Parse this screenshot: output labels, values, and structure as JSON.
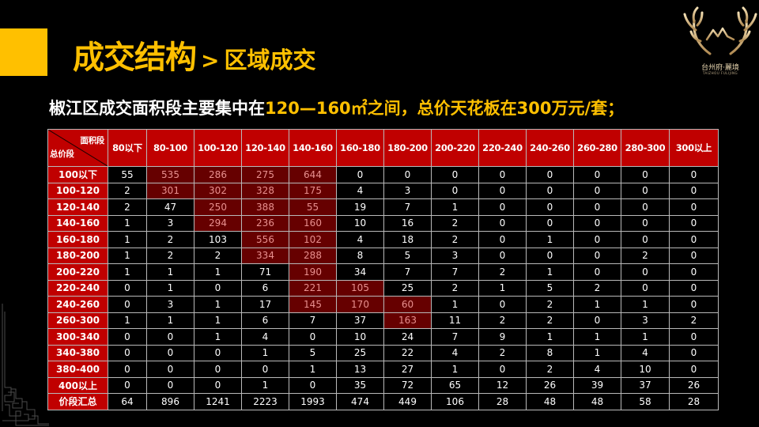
{
  "header": {
    "title_main": "成交结构",
    "title_separator": ">",
    "title_sub": "区域成交",
    "accent_color": "#FFC000"
  },
  "logo": {
    "name_cn": "台州府·麗境",
    "name_en": "TAIZHOU FULIJING",
    "icon": "antler-icon"
  },
  "headline": {
    "prefix": "椒江区成交面积段主要集中在",
    "highlight": "120—160㎡之间，总价天花板在300万元/套；"
  },
  "table": {
    "corner_top": "面积段",
    "corner_bottom": "总价段",
    "header_color": "#C00000",
    "highlight_color": "#660000",
    "columns": [
      "80以下",
      "80-100",
      "100-120",
      "120-140",
      "140-160",
      "160-180",
      "180-200",
      "200-220",
      "220-240",
      "240-260",
      "260-280",
      "280-300",
      "300以上"
    ],
    "rows": [
      {
        "label": "100以下",
        "values": [
          "55",
          "535",
          "286",
          "275",
          "644",
          "0",
          "0",
          "0",
          "0",
          "0",
          "0",
          "0",
          "0"
        ],
        "hot": [
          1,
          2,
          3,
          4
        ]
      },
      {
        "label": "100-120",
        "values": [
          "2",
          "301",
          "302",
          "328",
          "175",
          "4",
          "3",
          "0",
          "0",
          "0",
          "0",
          "0",
          "0"
        ],
        "hot": [
          1,
          2,
          3,
          4
        ]
      },
      {
        "label": "120-140",
        "values": [
          "2",
          "47",
          "250",
          "388",
          "55",
          "19",
          "7",
          "1",
          "0",
          "0",
          "0",
          "0",
          "0"
        ],
        "hot": [
          2,
          3,
          4
        ]
      },
      {
        "label": "140-160",
        "values": [
          "1",
          "3",
          "294",
          "236",
          "160",
          "10",
          "16",
          "2",
          "0",
          "0",
          "0",
          "0",
          "0"
        ],
        "hot": [
          2,
          3,
          4
        ]
      },
      {
        "label": "160-180",
        "values": [
          "1",
          "2",
          "103",
          "556",
          "102",
          "4",
          "18",
          "2",
          "0",
          "1",
          "0",
          "0",
          "0"
        ],
        "hot": [
          3,
          4
        ]
      },
      {
        "label": "180-200",
        "values": [
          "1",
          "2",
          "2",
          "334",
          "288",
          "8",
          "5",
          "3",
          "0",
          "0",
          "0",
          "2",
          "0"
        ],
        "hot": [
          3,
          4
        ]
      },
      {
        "label": "200-220",
        "values": [
          "1",
          "1",
          "1",
          "71",
          "190",
          "34",
          "7",
          "7",
          "2",
          "1",
          "0",
          "0",
          "0"
        ],
        "hot": [
          4
        ]
      },
      {
        "label": "220-240",
        "values": [
          "0",
          "1",
          "0",
          "6",
          "221",
          "105",
          "25",
          "2",
          "1",
          "5",
          "2",
          "0",
          "0"
        ],
        "hot": [
          4,
          5
        ]
      },
      {
        "label": "240-260",
        "values": [
          "0",
          "3",
          "1",
          "17",
          "145",
          "170",
          "60",
          "1",
          "0",
          "2",
          "1",
          "1",
          "0"
        ],
        "hot": [
          4,
          5,
          6
        ]
      },
      {
        "label": "260-300",
        "values": [
          "1",
          "1",
          "1",
          "6",
          "7",
          "37",
          "163",
          "11",
          "2",
          "2",
          "0",
          "3",
          "2"
        ],
        "hot": [
          6
        ]
      },
      {
        "label": "300-340",
        "values": [
          "0",
          "0",
          "1",
          "4",
          "0",
          "10",
          "24",
          "7",
          "9",
          "1",
          "1",
          "1",
          "0"
        ],
        "hot": []
      },
      {
        "label": "340-380",
        "values": [
          "0",
          "0",
          "0",
          "1",
          "5",
          "25",
          "22",
          "4",
          "2",
          "8",
          "1",
          "4",
          "0"
        ],
        "hot": []
      },
      {
        "label": "380-400",
        "values": [
          "0",
          "0",
          "0",
          "0",
          "1",
          "13",
          "27",
          "1",
          "0",
          "2",
          "4",
          "10",
          "0"
        ],
        "hot": []
      },
      {
        "label": "400以上",
        "values": [
          "0",
          "0",
          "0",
          "1",
          "0",
          "35",
          "72",
          "65",
          "12",
          "26",
          "39",
          "37",
          "26"
        ],
        "hot": []
      },
      {
        "label": "价段汇总",
        "values": [
          "64",
          "896",
          "1241",
          "2223",
          "1993",
          "474",
          "449",
          "106",
          "28",
          "48",
          "48",
          "58",
          "28"
        ],
        "hot": []
      }
    ]
  }
}
